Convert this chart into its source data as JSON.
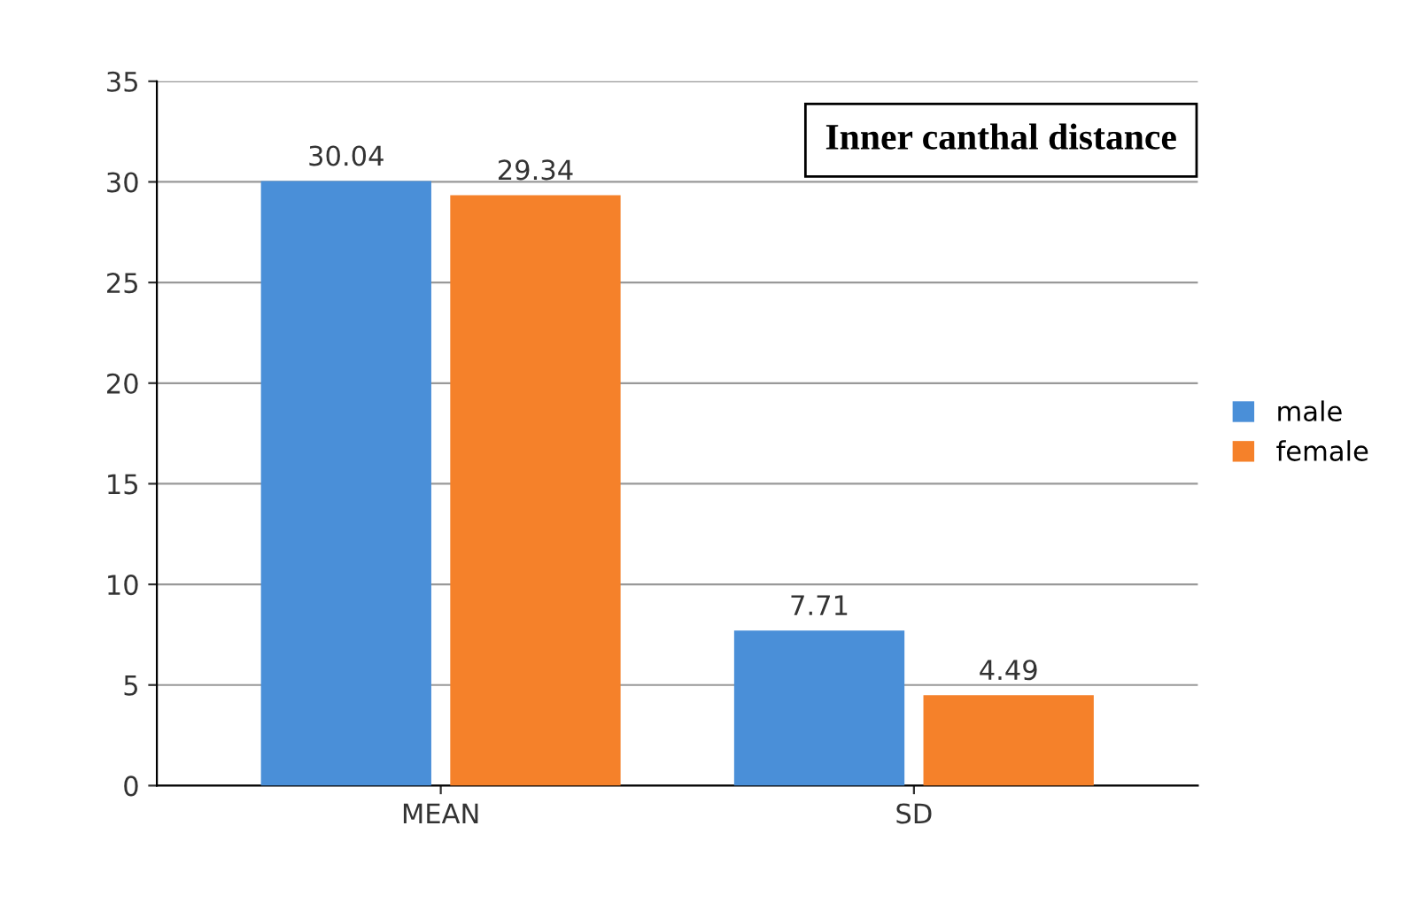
{
  "chart_data": {
    "type": "bar",
    "title": "Inner canthal distance",
    "categories": [
      "MEAN",
      "SD"
    ],
    "series": [
      {
        "name": "male",
        "color": "#4a8fd8",
        "values": [
          30.04,
          7.71
        ]
      },
      {
        "name": "female",
        "color": "#f5812a",
        "values": [
          29.34,
          4.49
        ]
      }
    ],
    "ylim": [
      0,
      35
    ],
    "yticks": [
      0,
      5,
      10,
      15,
      20,
      25,
      30,
      35
    ],
    "grid": "y",
    "legend": "right",
    "data_labels": true
  }
}
